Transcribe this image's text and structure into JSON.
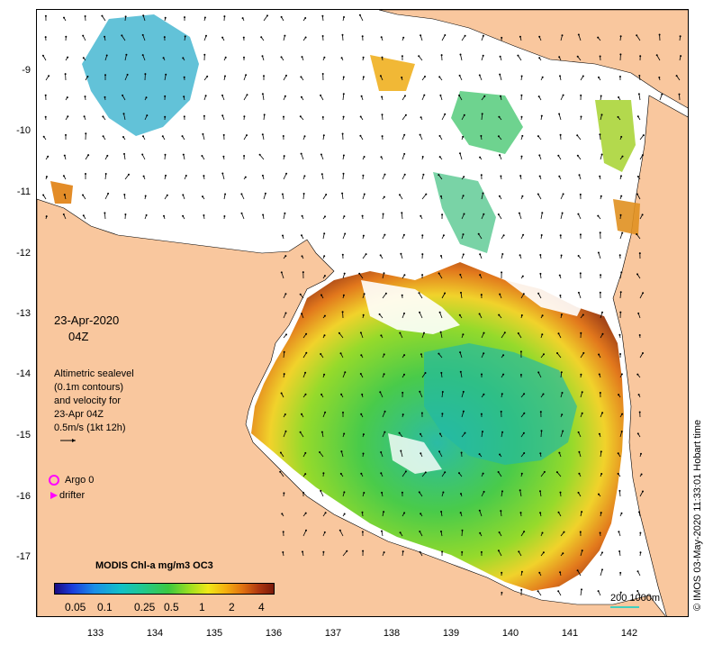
{
  "map": {
    "date": "23-Apr-2020",
    "hour": "04Z",
    "legend_lines": [
      "Altimetric sealevel",
      "(0.1m contours)",
      "and velocity for",
      "23-Apr 04Z",
      "0.5m/s (1kt 12h)"
    ],
    "argo_label": "Argo 0",
    "drifter_label": "drifter",
    "scale_label": "200  1000m",
    "copyright": "© IMOS 03-May-2020 11:33:01 Hobart time",
    "y_ticks": [
      "-9",
      "-10",
      "-11",
      "-12",
      "-13",
      "-14",
      "-15",
      "-16",
      "-17"
    ],
    "x_ticks": [
      "133",
      "134",
      "135",
      "136",
      "137",
      "138",
      "139",
      "140",
      "141",
      "142"
    ],
    "colorbar": {
      "title": "MODIS Chl-a mg/m3 OC3",
      "labels": [
        "0.05",
        "0.1",
        "0.25",
        "0.5",
        "1",
        "2",
        "4"
      ]
    },
    "colors": {
      "land": "#f9c79e",
      "argo": "#ff00ff",
      "drifter": "#ff00ff",
      "scale_bar": "#40d0c0"
    }
  }
}
